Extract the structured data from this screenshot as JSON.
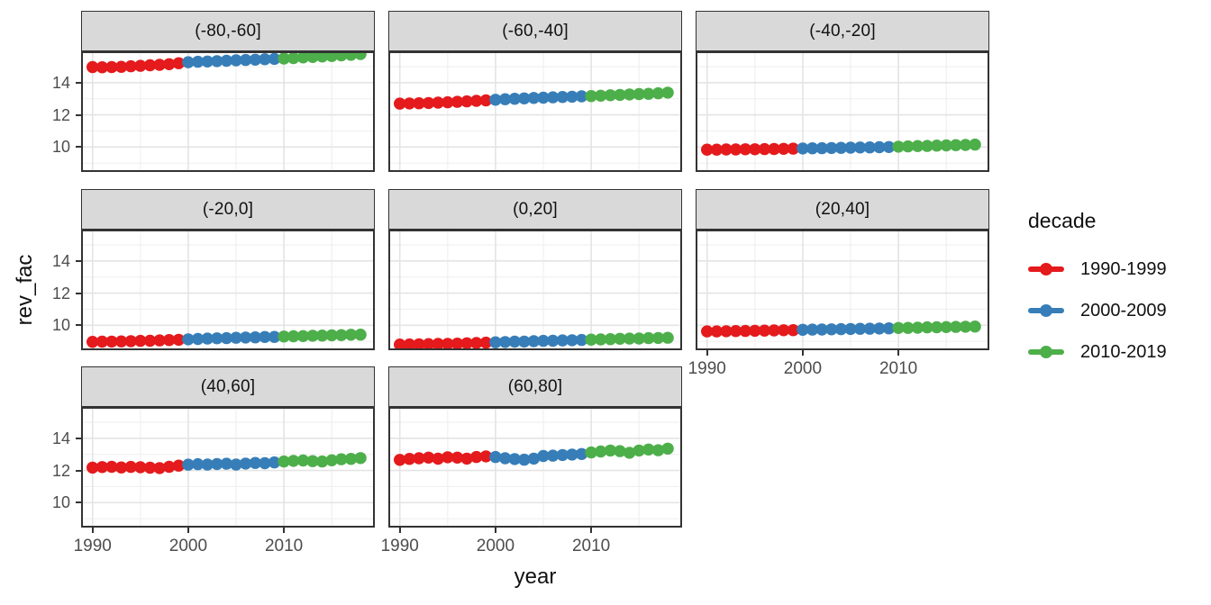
{
  "chart_data": {
    "type": "scatter",
    "description": "ggplot2-style facet_wrap panel grid of yearly points, colored by decade",
    "xlabel": "year",
    "ylabel": "rev_fac",
    "x_ticks": [
      1990,
      2000,
      2010
    ],
    "y_ticks": [
      14,
      12,
      10
    ],
    "x_minor_gridlines": [
      1995,
      2005,
      2015
    ],
    "y_major_gridlines": [
      10,
      12,
      14
    ],
    "y_minor_gridlines": [
      9,
      11,
      13,
      15
    ],
    "x_range": [
      1988.8,
      2019.5
    ],
    "y_range": [
      8.45,
      15.95
    ],
    "grid": true,
    "x": [
      1990,
      1991,
      1992,
      1993,
      1994,
      1995,
      1996,
      1997,
      1998,
      1999,
      2000,
      2001,
      2002,
      2003,
      2004,
      2005,
      2006,
      2007,
      2008,
      2009,
      2010,
      2011,
      2012,
      2013,
      2014,
      2015,
      2016,
      2017,
      2018
    ],
    "legend": {
      "title": "decade",
      "position": "right",
      "entries": [
        {
          "label": "1990-1999",
          "color": "#E41A1C",
          "years": [
            1990,
            1999
          ]
        },
        {
          "label": "2000-2009",
          "color": "#377EB8",
          "years": [
            2000,
            2009
          ]
        },
        {
          "label": "2010-2019",
          "color": "#4DAF4A",
          "years": [
            2010,
            2019
          ]
        }
      ]
    },
    "facets": [
      {
        "label": "(-80,-60]",
        "values": [
          14.97,
          14.96,
          14.97,
          14.99,
          15.02,
          15.05,
          15.08,
          15.11,
          15.15,
          15.21,
          15.27,
          15.3,
          15.32,
          15.34,
          15.36,
          15.39,
          15.41,
          15.43,
          15.46,
          15.48,
          15.5,
          15.53,
          15.57,
          15.6,
          15.63,
          15.66,
          15.7,
          15.73,
          15.78
        ]
      },
      {
        "label": "(-60,-40]",
        "values": [
          12.7,
          12.71,
          12.72,
          12.74,
          12.76,
          12.78,
          12.81,
          12.84,
          12.87,
          12.9,
          12.94,
          12.97,
          13.0,
          13.02,
          13.05,
          13.07,
          13.09,
          13.11,
          13.13,
          13.15,
          13.17,
          13.19,
          13.22,
          13.24,
          13.27,
          13.29,
          13.31,
          13.34,
          13.38
        ]
      },
      {
        "label": "(-40,-20]",
        "values": [
          9.84,
          9.84,
          9.85,
          9.85,
          9.86,
          9.86,
          9.87,
          9.88,
          9.89,
          9.9,
          9.91,
          9.92,
          9.93,
          9.94,
          9.95,
          9.96,
          9.97,
          9.98,
          9.99,
          10.0,
          10.02,
          10.04,
          10.06,
          10.07,
          10.09,
          10.1,
          10.12,
          10.13,
          10.15
        ]
      },
      {
        "label": "(-20,0]",
        "values": [
          8.97,
          8.98,
          8.99,
          9.0,
          9.01,
          9.03,
          9.04,
          9.06,
          9.08,
          9.1,
          9.13,
          9.15,
          9.17,
          9.19,
          9.2,
          9.22,
          9.24,
          9.25,
          9.27,
          9.28,
          9.3,
          9.32,
          9.33,
          9.35,
          9.36,
          9.38,
          9.39,
          9.41,
          9.42
        ]
      },
      {
        "label": "(0,20]",
        "values": [
          8.8,
          8.81,
          8.82,
          8.83,
          8.84,
          8.85,
          8.86,
          8.88,
          8.9,
          8.92,
          8.94,
          8.96,
          8.98,
          8.99,
          9.01,
          9.03,
          9.04,
          9.06,
          9.07,
          9.09,
          9.11,
          9.12,
          9.14,
          9.16,
          9.17,
          9.18,
          9.2,
          9.21,
          9.22
        ]
      },
      {
        "label": "(20,40]",
        "values": [
          9.62,
          9.62,
          9.63,
          9.64,
          9.65,
          9.66,
          9.67,
          9.68,
          9.69,
          9.7,
          9.72,
          9.73,
          9.74,
          9.75,
          9.76,
          9.77,
          9.78,
          9.79,
          9.8,
          9.81,
          9.83,
          9.84,
          9.85,
          9.87,
          9.88,
          9.89,
          9.9,
          9.91,
          9.92
        ]
      },
      {
        "label": "(40,60]",
        "values": [
          12.18,
          12.21,
          12.23,
          12.19,
          12.22,
          12.2,
          12.17,
          12.15,
          12.23,
          12.3,
          12.36,
          12.39,
          12.37,
          12.4,
          12.42,
          12.37,
          12.43,
          12.47,
          12.45,
          12.5,
          12.56,
          12.6,
          12.62,
          12.58,
          12.56,
          12.63,
          12.7,
          12.72,
          12.77
        ]
      },
      {
        "label": "(60,80]",
        "values": [
          12.66,
          12.72,
          12.76,
          12.8,
          12.73,
          12.82,
          12.8,
          12.74,
          12.84,
          12.88,
          12.84,
          12.76,
          12.71,
          12.67,
          12.74,
          12.9,
          12.92,
          12.96,
          12.99,
          13.02,
          13.12,
          13.18,
          13.24,
          13.2,
          13.1,
          13.24,
          13.3,
          13.26,
          13.36
        ]
      }
    ],
    "style": {
      "strip_background": "#d9d9d9",
      "panel_border": "#333333",
      "grid_major_color": "#e4e4e4",
      "grid_minor_color": "#f0f0f0",
      "tick_label_color": "#4d4d4d",
      "axis_title_color": "#111111",
      "point_radius_px": 6.7
    }
  }
}
